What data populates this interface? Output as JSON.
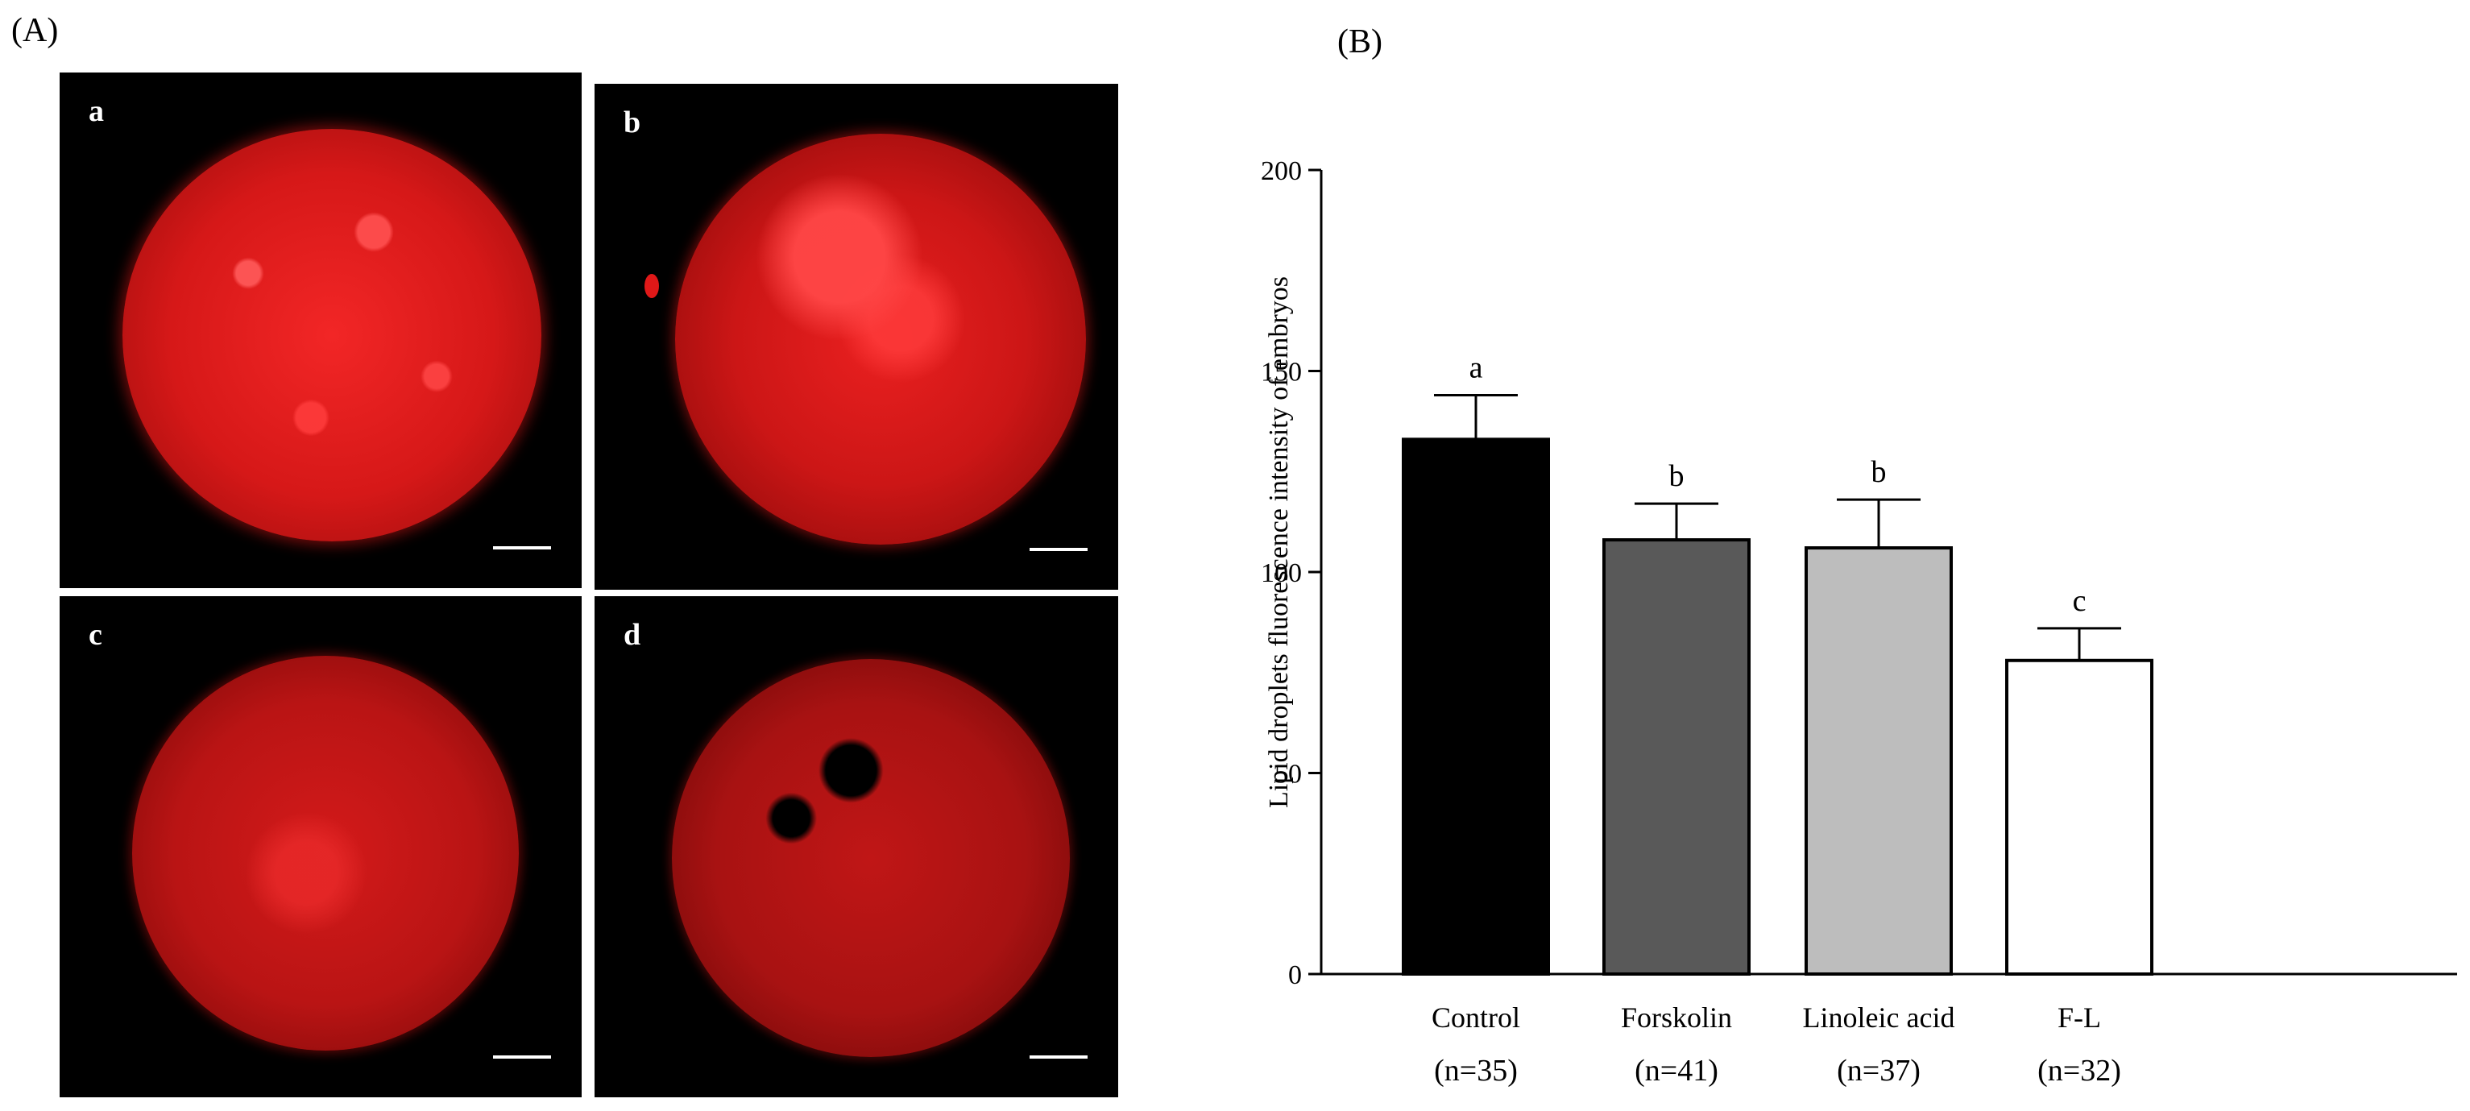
{
  "panel_a_label": "(A)",
  "panel_b_label": "(B)",
  "images": [
    {
      "label": "a",
      "scale_bar": true,
      "color": "#e31b1b",
      "intensity": "high"
    },
    {
      "label": "b",
      "scale_bar": true,
      "color": "#e01818",
      "intensity": "medium-high"
    },
    {
      "label": "c",
      "scale_bar": true,
      "color": "#c91414",
      "intensity": "medium"
    },
    {
      "label": "d",
      "scale_bar": true,
      "color": "#b81212",
      "intensity": "low"
    }
  ],
  "chart_data": {
    "type": "bar",
    "title": "",
    "xlabel": "",
    "ylabel": "Lipid  droplets fluorescence intensity of embryos",
    "ylim": [
      0,
      200
    ],
    "yticks": [
      0,
      50,
      100,
      150,
      200
    ],
    "grid": false,
    "categories": [
      "Control",
      "Forskolin",
      "Linoleic acid",
      "F-L"
    ],
    "sample_sizes": [
      "(n=35)",
      "(n=41)",
      "(n=37)",
      "(n=32)"
    ],
    "values": [
      133,
      108,
      106,
      78
    ],
    "errors": [
      11,
      9,
      12,
      8
    ],
    "significance": [
      "a",
      "b",
      "b",
      "c"
    ],
    "bar_colors": [
      "#000000",
      "#595959",
      "#bdbdbd",
      "#ffffff"
    ]
  }
}
